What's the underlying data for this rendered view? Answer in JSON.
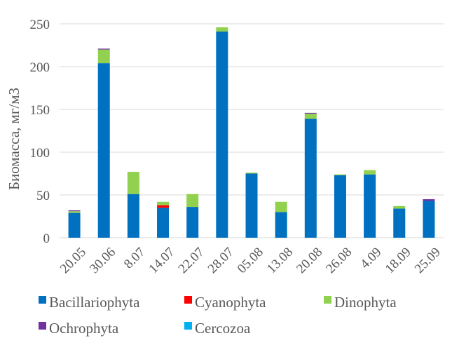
{
  "chart_data": {
    "type": "bar",
    "stacked": true,
    "title": "",
    "xlabel": "",
    "ylabel": "Биомасса, мг/м3",
    "ylim": [
      0,
      250
    ],
    "yticks": [
      0,
      50,
      100,
      150,
      200,
      250
    ],
    "grid": true,
    "legend_position": "bottom",
    "categories": [
      "20.05",
      "30.06",
      "8.07",
      "14.07",
      "22.07",
      "28.07",
      "05.08",
      "13.08",
      "20.08",
      "26.08",
      "4.09",
      "18.09",
      "25.09"
    ],
    "series": [
      {
        "name": "Bacillariophyta",
        "color": "#0070c0",
        "values": [
          29,
          204,
          51,
          35,
          36,
          241,
          75,
          30,
          139,
          73,
          74,
          34,
          43
        ]
      },
      {
        "name": "Cyanophyta",
        "color": "#ff0000",
        "values": [
          0,
          0,
          0,
          3,
          0,
          0,
          0,
          0,
          0,
          0,
          0,
          0,
          0
        ]
      },
      {
        "name": "Dinophyta",
        "color": "#92d050",
        "values": [
          2,
          16,
          26,
          4,
          15,
          5,
          1,
          12,
          6,
          1,
          5,
          3,
          0
        ]
      },
      {
        "name": "Ochrophyta",
        "color": "#7030a0",
        "values": [
          1,
          1,
          0,
          0,
          0,
          0,
          0,
          0,
          1,
          0,
          0,
          0,
          2
        ]
      },
      {
        "name": "Cercozoa",
        "color": "#00b0f0",
        "values": [
          0,
          0,
          0,
          0,
          0,
          0,
          0,
          0,
          0,
          0,
          0,
          0,
          0
        ]
      }
    ]
  }
}
